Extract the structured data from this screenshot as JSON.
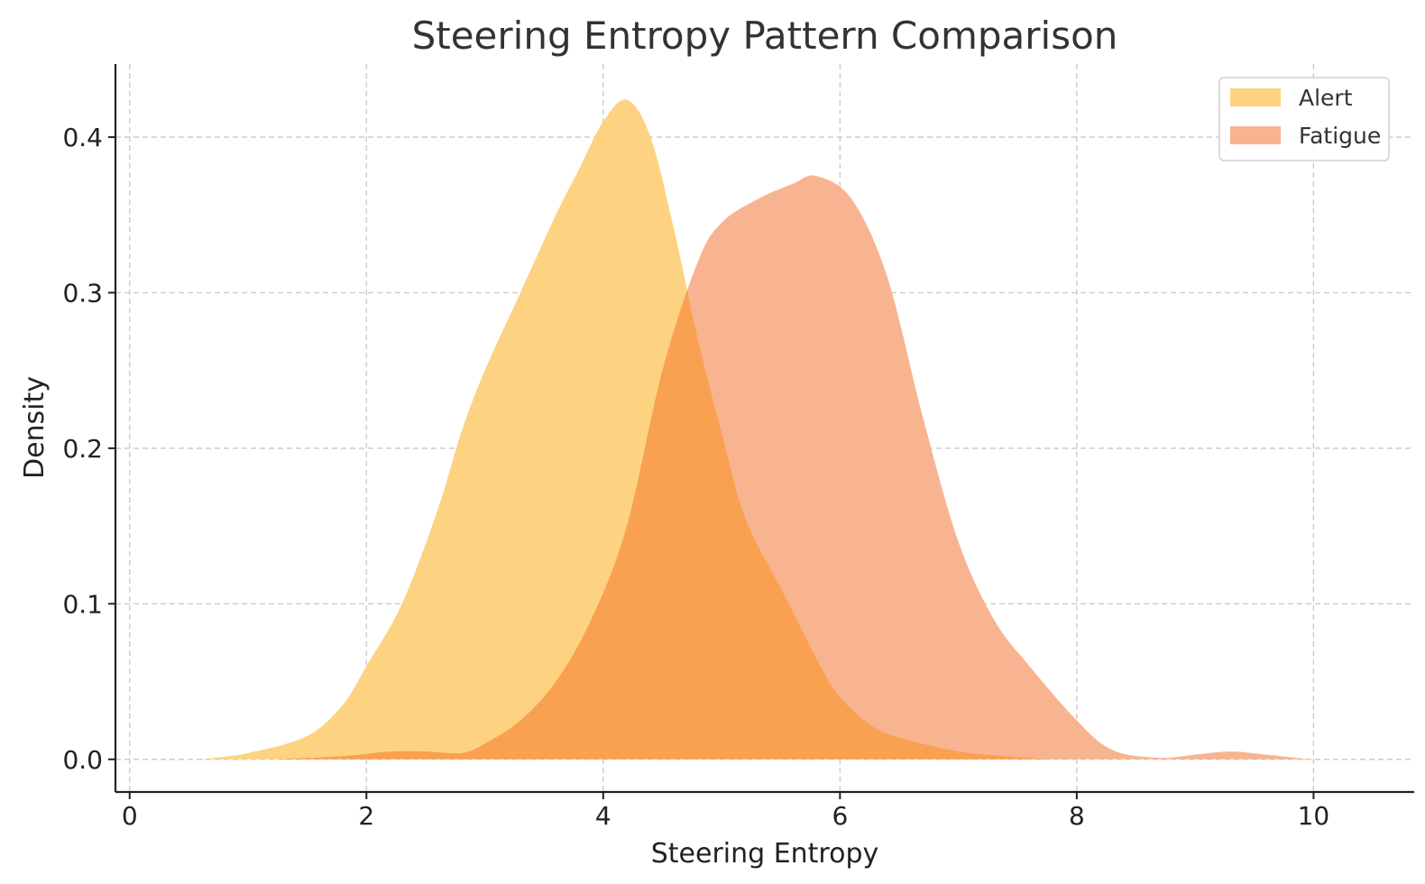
{
  "chart_data": {
    "type": "area",
    "title": "Steering Entropy Pattern Comparison",
    "xlabel": "Steering Entropy",
    "ylabel": "Density",
    "xlim": [
      -0.12,
      10.85
    ],
    "ylim": [
      -0.021,
      0.447
    ],
    "xticks": [
      0,
      2,
      4,
      6,
      8,
      10
    ],
    "yticks": [
      0.0,
      0.1,
      0.2,
      0.3,
      0.4
    ],
    "xtick_labels": [
      "0",
      "2",
      "4",
      "6",
      "8",
      "10"
    ],
    "ytick_labels": [
      "0.0",
      "0.1",
      "0.2",
      "0.3",
      "0.4"
    ],
    "grid": true,
    "legend_position": "top-right",
    "series": [
      {
        "name": "Alert",
        "color": "#fdd381",
        "x": [
          0.6,
          1.0,
          1.5,
          1.8,
          2.0,
          2.3,
          2.6,
          2.8,
          3.0,
          3.3,
          3.6,
          3.8,
          4.0,
          4.2,
          4.4,
          4.6,
          4.8,
          5.0,
          5.2,
          5.5,
          5.8,
          6.0,
          6.3,
          6.6,
          7.0,
          7.4,
          7.8,
          8.0
        ],
        "values": [
          0.0,
          0.004,
          0.015,
          0.035,
          0.06,
          0.1,
          0.16,
          0.21,
          0.25,
          0.3,
          0.35,
          0.38,
          0.41,
          0.424,
          0.4,
          0.34,
          0.27,
          0.21,
          0.155,
          0.11,
          0.065,
          0.04,
          0.02,
          0.012,
          0.005,
          0.002,
          0.0,
          0.0
        ]
      },
      {
        "name": "Fatigue",
        "color": "#f8b490",
        "x": [
          1.2,
          1.8,
          2.2,
          2.5,
          2.8,
          3.0,
          3.3,
          3.6,
          3.9,
          4.2,
          4.5,
          4.8,
          5.0,
          5.3,
          5.6,
          5.8,
          6.1,
          6.4,
          6.7,
          7.0,
          7.3,
          7.6,
          8.0,
          8.3,
          8.7,
          9.0,
          9.3,
          9.6,
          10.0,
          10.3
        ],
        "values": [
          0.0,
          0.002,
          0.005,
          0.005,
          0.004,
          0.01,
          0.025,
          0.05,
          0.09,
          0.15,
          0.25,
          0.32,
          0.345,
          0.36,
          0.37,
          0.375,
          0.36,
          0.31,
          0.22,
          0.14,
          0.09,
          0.06,
          0.025,
          0.006,
          0.001,
          0.003,
          0.005,
          0.003,
          0.0,
          0.0
        ]
      }
    ],
    "overlap_color": "#f9a150"
  }
}
